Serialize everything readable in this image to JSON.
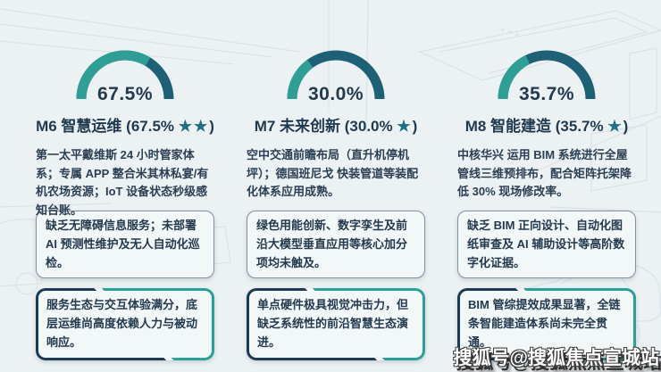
{
  "watermark": "搜狐号@搜狐焦点宣城站",
  "colors": {
    "background": "#ECF1F3",
    "gauge_fill_teal": "#2F9E95",
    "gauge_track_dark": "#1E6076",
    "title_navy": "#1F3A50",
    "star_teal": "#1F6E86",
    "plain_box_border": "#7E93A3",
    "fancy_border_navy": "#1C3A52",
    "fancy_border_teal": "#2AA096",
    "box_background": "#F2F7F8"
  },
  "chart_data": [
    {
      "type": "gauge",
      "label": "M6 智慧运维",
      "value": 67.5,
      "max": 100,
      "unit": "%",
      "value_text": "67.5%",
      "fill_color": "#2F9E95",
      "track_color": "#1E6076"
    },
    {
      "type": "gauge",
      "label": "M7 未来创新",
      "value": 30.0,
      "max": 100,
      "unit": "%",
      "value_text": "30.0%",
      "fill_color": "#2F9E95",
      "track_color": "#1E6076"
    },
    {
      "type": "gauge",
      "label": "M8 智能建造",
      "value": 35.7,
      "max": 100,
      "unit": "%",
      "value_text": "35.7%",
      "fill_color": "#2F9E95",
      "track_color": "#1E6076"
    }
  ],
  "columns": [
    {
      "title_prefix": "M6 智慧运维 (67.5% ",
      "stars": "★★",
      "title_suffix": ")",
      "description": "第一太平戴维斯 24 小时管家体系；专属 APP 整合米其林私宴/有机农场资源；IoT 设备状态秒级感知台账。",
      "gap_note": "缺乏无障碍信息服务；未部署 AI 预测性维护及无人自动化巡检。",
      "summary_note": "服务生态与交互体验满分，底层运维尚高度依赖人力与被动响应。"
    },
    {
      "title_prefix": "M7 未来创新 (30.0% ",
      "stars": "★",
      "title_suffix": ")",
      "description": "空中交通前瞻布局（直升机停机坪）；德国班尼戈 快装管道等装配化体系应用成熟。",
      "gap_note": "绿色用能创新、数字孪生及前沿大模型垂直应用等核心加分项均未触及。",
      "summary_note": "单点硬件极具视觉冲击力，但缺乏系统性的前沿智慧生态演进。"
    },
    {
      "title_prefix": "M8 智能建造 (35.7% ",
      "stars": "★",
      "title_suffix": ")",
      "description": "中核华兴 运用 BIM 系统进行全屋管线三维预排布，配合矩阵托架降低 30% 现场修改率。",
      "gap_note": "缺乏 BIM 正向设计、自动化图纸审查及 AI 辅助设计等高阶数字化证据。",
      "summary_note": "BIM 管综提效成果显著，全链条智能建造体系尚未完全贯通。"
    }
  ]
}
